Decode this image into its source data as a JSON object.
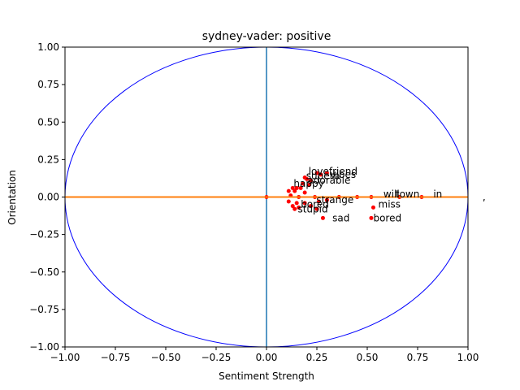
{
  "chart_data": {
    "type": "scatter",
    "title": "sydney-vader: positive",
    "xlabel": "Sentiment Strength",
    "ylabel": "Orientation",
    "xlim": [
      -1.0,
      1.0
    ],
    "ylim": [
      -1.0,
      1.0
    ],
    "x_ticks": [
      "−1.00",
      "−0.75",
      "−0.50",
      "−0.25",
      "0.00",
      "0.25",
      "0.50",
      "0.75",
      "1.00"
    ],
    "y_ticks": [
      "1.00",
      "0.75",
      "0.50",
      "0.25",
      "0.00",
      "−0.25",
      "−0.50",
      "−0.75",
      "−1.00"
    ],
    "grid": false,
    "colors": {
      "points": "#ff0000",
      "circle": "#0000ff",
      "vertical_line": "#1f77b4",
      "horizontal_line": "#ff7f0e"
    },
    "labeled_points": [
      {
        "word": "lovefriend",
        "x": 0.33,
        "y": 0.17
      },
      {
        "word": "vibes",
        "x": 0.38,
        "y": 0.15
      },
      {
        "word": "superb",
        "x": 0.28,
        "y": 0.14
      },
      {
        "word": "adorable",
        "x": 0.31,
        "y": 0.11
      },
      {
        "word": "happy",
        "x": 0.21,
        "y": 0.09
      },
      {
        "word": "sad",
        "x": 0.37,
        "y": -0.14
      },
      {
        "word": "bored",
        "x": 0.6,
        "y": -0.14
      },
      {
        "word": "miss",
        "x": 0.61,
        "y": -0.05
      },
      {
        "word": "strange",
        "x": 0.34,
        "y": -0.02
      },
      {
        "word": "stupid",
        "x": 0.23,
        "y": -0.08
      },
      {
        "word": "bored",
        "x": 0.24,
        "y": -0.05
      },
      {
        "word": "town",
        "x": 0.7,
        "y": 0.02
      },
      {
        "word": "in",
        "x": 0.85,
        "y": 0.02
      },
      {
        "word": "will",
        "x": 0.62,
        "y": 0.02
      },
      {
        "word": ",",
        "x": 1.08,
        "y": 0.0
      }
    ],
    "points": [
      {
        "x": 0.25,
        "y": 0.16
      },
      {
        "x": 0.3,
        "y": 0.16
      },
      {
        "x": 0.27,
        "y": 0.15
      },
      {
        "x": 0.19,
        "y": 0.13
      },
      {
        "x": 0.2,
        "y": 0.12
      },
      {
        "x": 0.22,
        "y": 0.11
      },
      {
        "x": 0.18,
        "y": 0.09
      },
      {
        "x": 0.21,
        "y": 0.08
      },
      {
        "x": 0.13,
        "y": 0.06
      },
      {
        "x": 0.15,
        "y": 0.06
      },
      {
        "x": 0.17,
        "y": 0.06
      },
      {
        "x": 0.11,
        "y": 0.04
      },
      {
        "x": 0.14,
        "y": 0.04
      },
      {
        "x": 0.19,
        "y": 0.03
      },
      {
        "x": 0.12,
        "y": 0.01
      },
      {
        "x": 0.16,
        "y": 0.0
      },
      {
        "x": 0.24,
        "y": 0.0
      },
      {
        "x": 0.36,
        "y": 0.0
      },
      {
        "x": 0.45,
        "y": 0.0
      },
      {
        "x": 0.52,
        "y": 0.0
      },
      {
        "x": 0.66,
        "y": 0.0
      },
      {
        "x": 0.77,
        "y": 0.0
      },
      {
        "x": 0.11,
        "y": -0.03
      },
      {
        "x": 0.15,
        "y": -0.04
      },
      {
        "x": 0.19,
        "y": -0.04
      },
      {
        "x": 0.13,
        "y": -0.06
      },
      {
        "x": 0.16,
        "y": -0.07
      },
      {
        "x": 0.22,
        "y": -0.06
      },
      {
        "x": 0.14,
        "y": -0.08
      },
      {
        "x": 0.25,
        "y": -0.08
      },
      {
        "x": 0.53,
        "y": -0.07
      },
      {
        "x": 0.28,
        "y": -0.14
      },
      {
        "x": 0.52,
        "y": -0.14
      },
      {
        "x": 0.26,
        "y": -0.03
      },
      {
        "x": 0.3,
        "y": -0.02
      },
      {
        "x": 0.0,
        "y": 0.0
      }
    ]
  }
}
